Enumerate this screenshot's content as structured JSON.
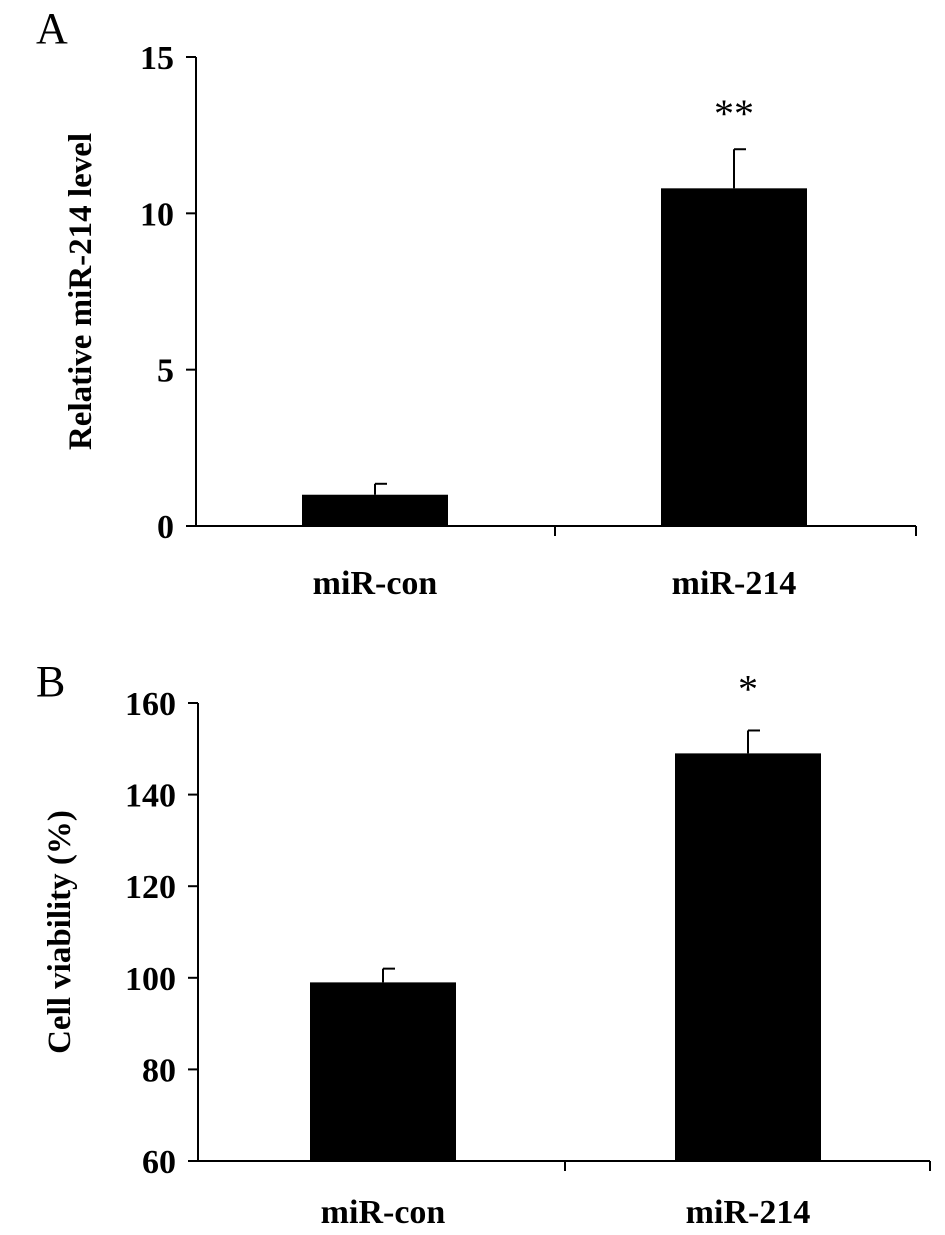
{
  "figure": {
    "background": "#ffffff",
    "ink": "#000000"
  },
  "chart_data": [
    {
      "panel_label": "A",
      "type": "bar",
      "categories": [
        "miR-con",
        "miR-214"
      ],
      "values": [
        1.0,
        10.8
      ],
      "errors": [
        0.35,
        1.25
      ],
      "significance": [
        "",
        "**"
      ],
      "title": "",
      "xlabel": "",
      "ylabel": "Relative miR-214 level",
      "ylim": [
        0,
        15
      ],
      "yticks": [
        0,
        5,
        10,
        15
      ],
      "ytick_labels": [
        "0",
        "5",
        "10",
        "15"
      ],
      "grid": false,
      "bar_color": "#000000"
    },
    {
      "panel_label": "B",
      "type": "bar",
      "categories": [
        "miR-con",
        "miR-214"
      ],
      "values": [
        99,
        149
      ],
      "errors": [
        3.0,
        5.0
      ],
      "significance": [
        "",
        "*"
      ],
      "title": "",
      "xlabel": "",
      "ylabel": "Cell viability (%)",
      "ylim": [
        60,
        160
      ],
      "yticks": [
        60,
        80,
        100,
        120,
        140,
        160
      ],
      "ytick_labels": [
        "60",
        "80",
        "100",
        "120",
        "140",
        "160"
      ],
      "grid": false,
      "bar_color": "#000000"
    }
  ]
}
